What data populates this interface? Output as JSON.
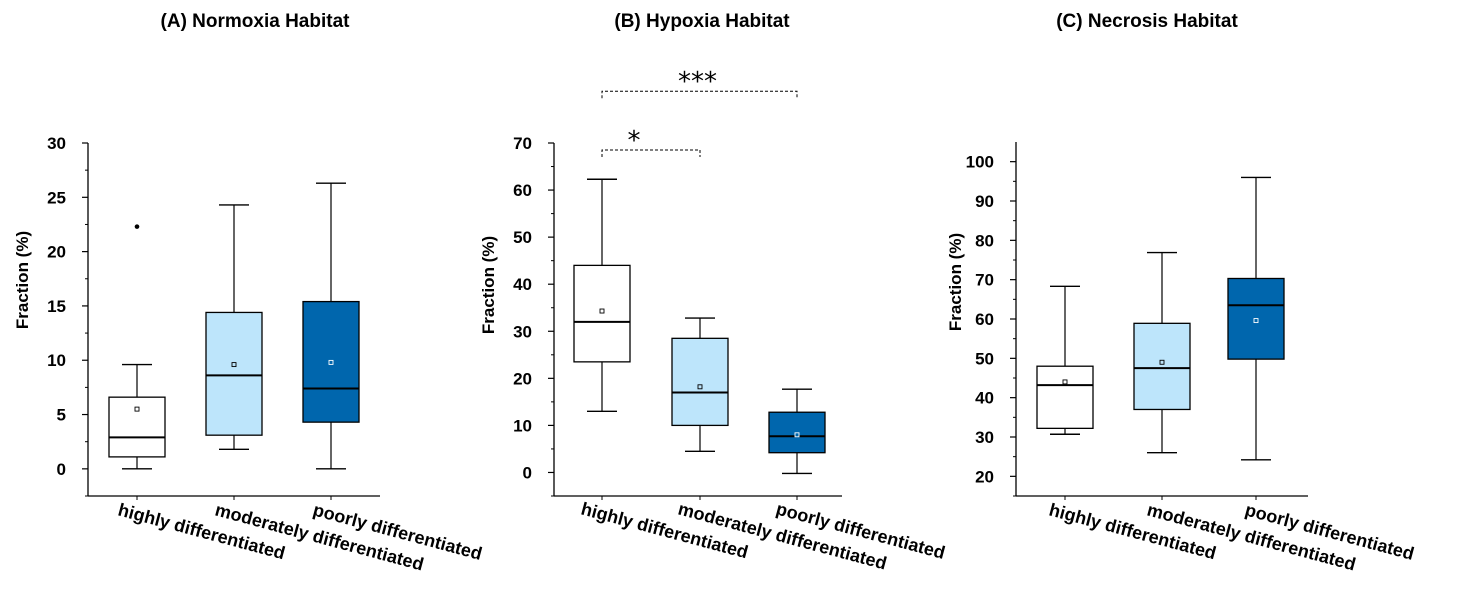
{
  "colors": {
    "highly": "#ffffff",
    "moderately": "#bde5fb",
    "poorly": "#0066ad",
    "stroke": "#000000"
  },
  "chart_data": [
    {
      "type": "box",
      "title": "(A) Normoxia Habitat",
      "ylabel": "Fraction (%)",
      "ylim": [
        -2.5,
        30
      ],
      "yticks": [
        0,
        5,
        10,
        15,
        20,
        25,
        30
      ],
      "categories": [
        "highly differentiated",
        "moderately differentiated",
        "poorly differentiated"
      ],
      "boxes": [
        {
          "category": "highly differentiated",
          "min": 0,
          "q1": 1.1,
          "median": 2.9,
          "q3": 6.6,
          "max": 9.6,
          "mean": 5.5,
          "outliers": [
            22.3
          ],
          "color": "highly"
        },
        {
          "category": "moderately differentiated",
          "min": 1.8,
          "q1": 3.1,
          "median": 8.6,
          "q3": 14.4,
          "max": 24.3,
          "mean": 9.6,
          "outliers": [],
          "color": "moderately"
        },
        {
          "category": "poorly differentiated",
          "min": 0,
          "q1": 4.3,
          "median": 7.4,
          "q3": 15.4,
          "max": 26.3,
          "mean": 9.8,
          "outliers": [],
          "color": "poorly"
        }
      ],
      "significance": []
    },
    {
      "type": "box",
      "title": "(B) Hypoxia Habitat",
      "ylabel": "Fraction (%)",
      "ylim": [
        -5,
        70
      ],
      "yticks": [
        0,
        10,
        20,
        30,
        40,
        50,
        60,
        70
      ],
      "categories": [
        "highly differentiated",
        "moderately differentiated",
        "poorly differentiated"
      ],
      "boxes": [
        {
          "category": "highly differentiated",
          "min": 13,
          "q1": 23.5,
          "median": 32,
          "q3": 44,
          "max": 62.3,
          "mean": 34.3,
          "outliers": [],
          "color": "highly"
        },
        {
          "category": "moderately differentiated",
          "min": 4.5,
          "q1": 10,
          "median": 17,
          "q3": 28.5,
          "max": 32.8,
          "mean": 18.2,
          "outliers": [],
          "color": "moderately"
        },
        {
          "category": "poorly differentiated",
          "min": -0.2,
          "q1": 4.2,
          "median": 7.7,
          "q3": 12.8,
          "max": 17.7,
          "mean": 8,
          "outliers": [],
          "color": "poorly"
        }
      ],
      "significance": [
        {
          "from": 0,
          "to": 1,
          "label": "*",
          "y": 68.5
        },
        {
          "from": 0,
          "to": 2,
          "label": "***",
          "y": 81
        }
      ]
    },
    {
      "type": "box",
      "title": "(C) Necrosis Habitat",
      "ylabel": "Fraction (%)",
      "ylim": [
        15,
        105
      ],
      "yticks": [
        20,
        30,
        40,
        50,
        60,
        70,
        80,
        90,
        100
      ],
      "categories": [
        "highly differentiated",
        "moderately differentiated",
        "poorly differentiated"
      ],
      "boxes": [
        {
          "category": "highly differentiated",
          "min": 30.7,
          "q1": 32.2,
          "median": 43.2,
          "q3": 48,
          "max": 68.3,
          "mean": 44,
          "outliers": [],
          "color": "highly"
        },
        {
          "category": "moderately differentiated",
          "min": 26,
          "q1": 37,
          "median": 47.5,
          "q3": 58.9,
          "max": 76.9,
          "mean": 49,
          "outliers": [],
          "color": "moderately"
        },
        {
          "category": "poorly differentiated",
          "min": 24.2,
          "q1": 49.8,
          "median": 63.5,
          "q3": 70.3,
          "max": 96,
          "mean": 59.6,
          "outliers": [],
          "color": "poorly"
        }
      ],
      "significance": []
    }
  ]
}
